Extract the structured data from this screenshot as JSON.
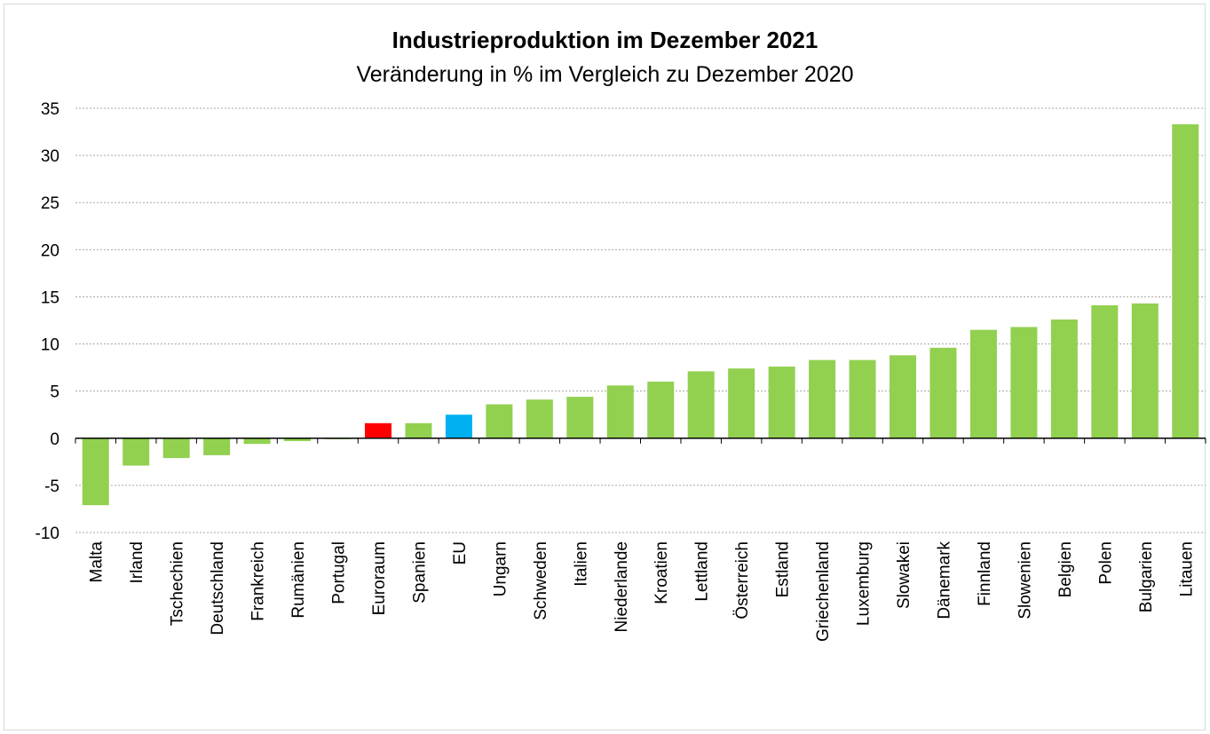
{
  "chart_data": {
    "type": "bar",
    "title": "Industrieproduktion im Dezember 2021",
    "subtitle": "Veränderung in % im Vergleich zu Dezember 2020",
    "xlabel": "",
    "ylabel": "",
    "ylim": [
      -10,
      35
    ],
    "yticks": [
      "-10",
      "-5",
      "0",
      "5",
      "10",
      "15",
      "20",
      "25",
      "30",
      "35"
    ],
    "grid": true,
    "categories": [
      "Malta",
      "Irland",
      "Tschechien",
      "Deutschland",
      "Frankreich",
      "Rumänien",
      "Portugal",
      "Euroraum",
      "Spanien",
      "EU",
      "Ungarn",
      "Schweden",
      "Italien",
      "Niederlande",
      "Kroatien",
      "Lettland",
      "Österreich",
      "Estland",
      "Griechenland",
      "Luxemburg",
      "Slowakei",
      "Dänemark",
      "Finnland",
      "Slowenien",
      "Belgien",
      "Polen",
      "Bulgarien",
      "Litauen"
    ],
    "values": [
      -7.1,
      -2.9,
      -2.1,
      -1.8,
      -0.6,
      -0.3,
      -0.1,
      1.6,
      1.6,
      2.5,
      3.6,
      4.1,
      4.4,
      5.6,
      6.0,
      7.1,
      7.4,
      7.6,
      8.3,
      8.3,
      8.8,
      9.6,
      11.5,
      11.8,
      12.6,
      14.1,
      14.3,
      33.3
    ],
    "colors": {
      "default": "#92d050",
      "Euroraum": "#ff0000",
      "EU": "#00b0f0"
    }
  }
}
